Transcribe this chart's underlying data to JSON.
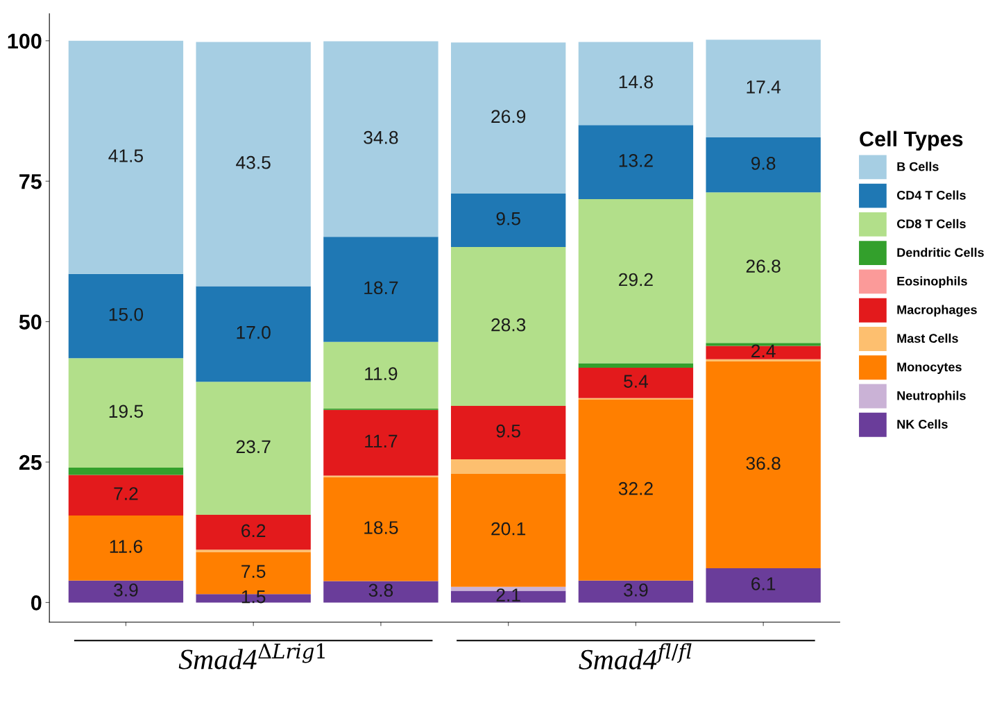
{
  "chart_data": {
    "type": "bar",
    "stacked": true,
    "legend_title": "Cell Types",
    "legend": "right",
    "grid": false,
    "categories": [
      null,
      null,
      null,
      null,
      null,
      null
    ],
    "ylim": [
      0,
      100
    ],
    "yticks": [
      0,
      25,
      50,
      75,
      100
    ],
    "annotations": [
      "Smad4$^{ΔLrig1}$",
      "Smad4$^{fl/fl}$"
    ],
    "series": [
      {
        "name": "NK Cells",
        "color": "#6a3d9a",
        "values": [
          3.9,
          1.5,
          3.8,
          2.1,
          3.9,
          6.1
        ],
        "value_labels": [
          "3.9",
          "1.5",
          "3.8",
          "2.1",
          "3.9",
          "6.1"
        ]
      },
      {
        "name": "Neutrophils",
        "color": "#cab2d6",
        "values": [
          0,
          null,
          0,
          0.7,
          0,
          0
        ],
        "value_labels": [
          null,
          null,
          null,
          null,
          null,
          null
        ]
      },
      {
        "name": "Monocytes",
        "color": "#ff7f00",
        "values": [
          11.6,
          7.5,
          18.5,
          20.1,
          32.2,
          36.8
        ],
        "value_labels": [
          "11.6",
          "7.5",
          "18.5",
          "20.1",
          "32.2",
          "36.8"
        ]
      },
      {
        "name": "Mast Cells",
        "color": "#fdbf6f",
        "values": [
          0,
          0.4,
          0.3,
          2.6,
          0.3,
          0.4
        ],
        "value_labels": [
          null,
          null,
          null,
          null,
          null,
          null
        ]
      },
      {
        "name": "Macrophages",
        "color": "#e31a1c",
        "values": [
          7.2,
          6.2,
          11.7,
          9.5,
          5.4,
          2.4
        ],
        "value_labels": [
          "7.2",
          "6.2",
          "11.7",
          "9.5",
          "5.4",
          "2.4"
        ]
      },
      {
        "name": "Eosinophils",
        "color": "#fb9a99",
        "values": [
          0,
          0,
          0,
          0,
          0,
          0
        ],
        "value_labels": [
          null,
          null,
          null,
          null,
          null,
          null
        ]
      },
      {
        "name": "Dendritic Cells",
        "color": "#33a02c",
        "values": [
          1.3,
          0,
          0.2,
          0,
          0.8,
          0.5
        ],
        "value_labels": [
          null,
          null,
          null,
          null,
          null,
          null
        ]
      },
      {
        "name": "CD8 T Cells",
        "color": "#b2df8a",
        "values": [
          19.5,
          23.7,
          11.9,
          28.3,
          29.2,
          26.8
        ],
        "value_labels": [
          "19.5",
          "23.7",
          "11.9",
          "28.3",
          "29.2",
          "26.8"
        ]
      },
      {
        "name": "CD4 T Cells",
        "color": "#1f78b4",
        "values": [
          15.0,
          17.0,
          18.7,
          9.5,
          13.2,
          9.8
        ],
        "value_labels": [
          "15.0",
          "17.0",
          "18.7",
          "9.5",
          "13.2",
          "9.8"
        ]
      },
      {
        "name": "B Cells",
        "color": "#a6cee3",
        "values": [
          41.5,
          43.5,
          34.8,
          26.9,
          14.8,
          17.4
        ],
        "value_labels": [
          "41.5",
          "43.5",
          "34.8",
          "26.9",
          "14.8",
          "17.4"
        ]
      }
    ]
  }
}
